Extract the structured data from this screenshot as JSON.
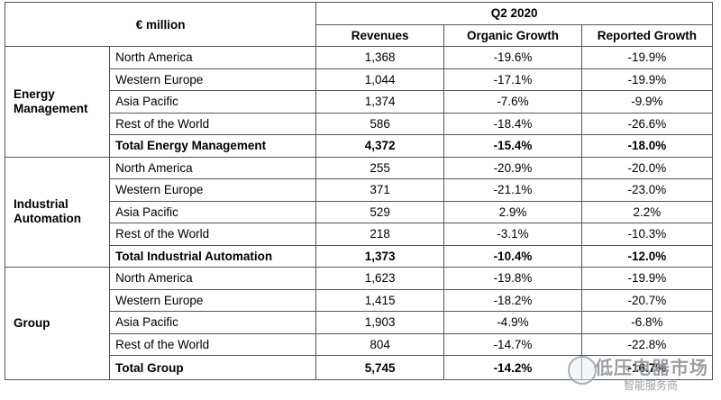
{
  "header": {
    "unit_label": "€ million",
    "period": "Q2 2020",
    "col_revenues": "Revenues",
    "col_organic": "Organic Growth",
    "col_reported": "Reported Growth"
  },
  "segments": [
    {
      "name_line1": "Energy",
      "name_line2": "Management",
      "rows": [
        {
          "region": "North America",
          "revenues": "1,368",
          "organic": "-19.6%",
          "reported": "-19.9%"
        },
        {
          "region": "Western Europe",
          "revenues": "1,044",
          "organic": "-17.1%",
          "reported": "-19.9%"
        },
        {
          "region": "Asia Pacific",
          "revenues": "1,374",
          "organic": "-7.6%",
          "reported": "-9.9%"
        },
        {
          "region": "Rest of the World",
          "revenues": "586",
          "organic": "-18.4%",
          "reported": "-26.6%"
        }
      ],
      "total": {
        "label": "Total Energy Management",
        "revenues": "4,372",
        "organic": "-15.4%",
        "reported": "-18.0%"
      }
    },
    {
      "name_line1": "Industrial",
      "name_line2": "Automation",
      "rows": [
        {
          "region": "North America",
          "revenues": "255",
          "organic": "-20.9%",
          "reported": "-20.0%"
        },
        {
          "region": "Western Europe",
          "revenues": "371",
          "organic": "-21.1%",
          "reported": "-23.0%"
        },
        {
          "region": "Asia Pacific",
          "revenues": "529",
          "organic": "2.9%",
          "reported": "2.2%"
        },
        {
          "region": "Rest of the World",
          "revenues": "218",
          "organic": "-3.1%",
          "reported": "-10.3%"
        }
      ],
      "total": {
        "label": "Total Industrial Automation",
        "revenues": "1,373",
        "organic": "-10.4%",
        "reported": "-12.0%"
      }
    },
    {
      "name_line1": "Group",
      "name_line2": "",
      "rows": [
        {
          "region": "North America",
          "revenues": "1,623",
          "organic": "-19.8%",
          "reported": "-19.9%"
        },
        {
          "region": "Western Europe",
          "revenues": "1,415",
          "organic": "-18.2%",
          "reported": "-20.7%"
        },
        {
          "region": "Asia Pacific",
          "revenues": "1,903",
          "organic": "-4.9%",
          "reported": "-6.8%"
        },
        {
          "region": "Rest of the World",
          "revenues": "804",
          "organic": "-14.7%",
          "reported": "-22.8%"
        }
      ],
      "total": {
        "label": "Total Group",
        "revenues": "5,745",
        "organic": "-14.2%",
        "reported": "-16.7%"
      }
    }
  ],
  "watermark": {
    "line1": "低压电器市场",
    "line2": "智能服务商"
  }
}
